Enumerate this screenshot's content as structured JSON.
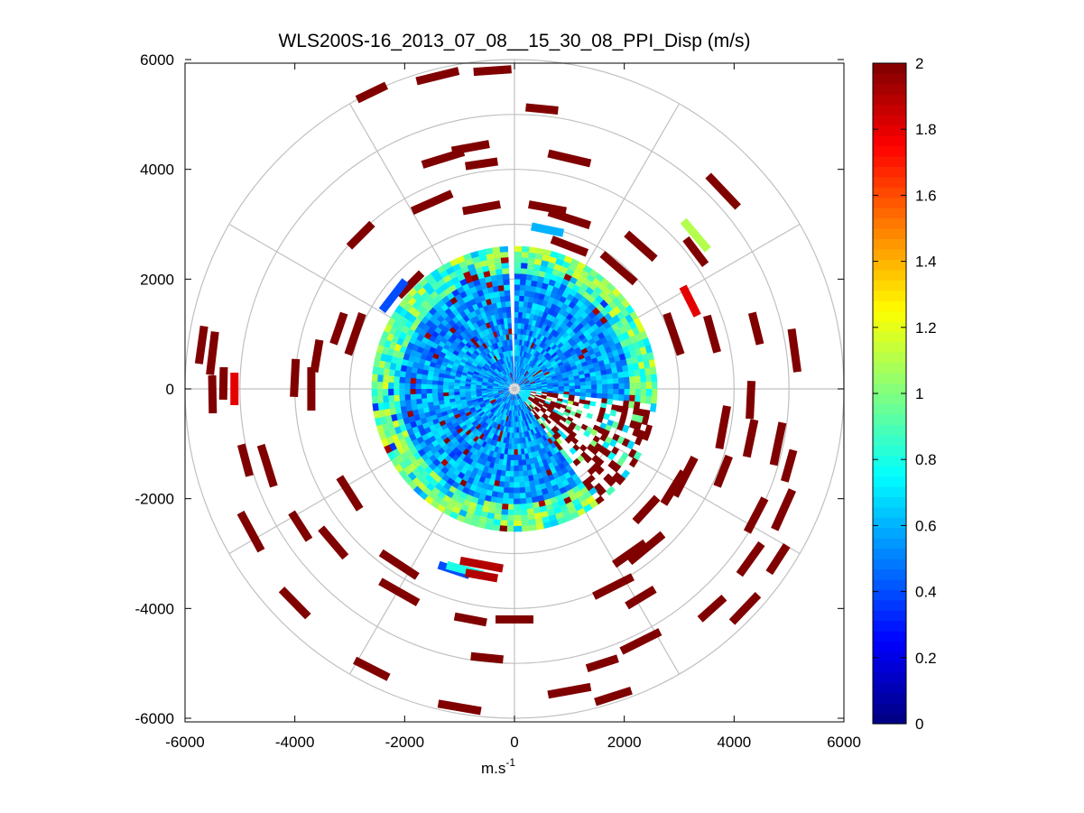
{
  "chart_data": {
    "type": "heatmap",
    "subtype": "polar-ppi-scan",
    "title": "WLS200S-16_2013_07_08__15_30_08_PPI_Disp (m/s)",
    "xlabel_base": "m.s",
    "xlabel_sup": "-1",
    "ylabel": "",
    "xlim": [
      -6000,
      6000
    ],
    "ylim": [
      -6000,
      6000
    ],
    "xticks": [
      "-6000",
      "-4000",
      "-2000",
      "0",
      "2000",
      "4000",
      "6000"
    ],
    "xtick_values": [
      -6000,
      -4000,
      -2000,
      0,
      2000,
      4000,
      6000
    ],
    "yticks": [
      "6000",
      "4000",
      "2000",
      "0",
      "-2000",
      "-4000",
      "-6000"
    ],
    "ytick_values": [
      6000,
      4000,
      2000,
      0,
      -2000,
      -4000,
      -6000
    ],
    "polar_grid": {
      "ring_radii": [
        1000,
        2000,
        3000,
        4000,
        5000,
        6000
      ],
      "spoke_angles_deg": [
        0,
        30,
        60,
        90,
        120,
        150,
        180,
        210,
        240,
        270,
        300,
        330
      ],
      "color": "#c0c0c0"
    },
    "dense_region": {
      "max_range": 2600,
      "gap_bearing_deg": [
        -3,
        1
      ],
      "high_dispersion_bearing_deg": [
        95,
        145
      ],
      "typical_value": 0.7
    },
    "sparse_cells": [
      {
        "x": -1900,
        "y": 1900,
        "v": 2.0
      },
      {
        "x": -2200,
        "y": 1700,
        "v": 0.4
      },
      {
        "x": -2900,
        "y": 1000,
        "v": 2.0
      },
      {
        "x": -3200,
        "y": 1100,
        "v": 2.0
      },
      {
        "x": -5700,
        "y": 800,
        "v": 2.0
      },
      {
        "x": -5500,
        "y": 650,
        "v": 2.0
      },
      {
        "x": -5100,
        "y": 0,
        "v": 1.8
      },
      {
        "x": -5500,
        "y": -100,
        "v": 2.0
      },
      {
        "x": -4500,
        "y": -1400,
        "v": 2.0
      },
      {
        "x": -4900,
        "y": -1300,
        "v": 2.0
      },
      {
        "x": -3000,
        "y": -1900,
        "v": 2.0
      },
      {
        "x": -4800,
        "y": -2600,
        "v": 2.0
      },
      {
        "x": -3900,
        "y": -2500,
        "v": 2.0
      },
      {
        "x": -3300,
        "y": -2800,
        "v": 2.0
      },
      {
        "x": -2100,
        "y": -3200,
        "v": 2.0
      },
      {
        "x": -1100,
        "y": -3300,
        "v": 0.4
      },
      {
        "x": -900,
        "y": -3300,
        "v": 0.8
      },
      {
        "x": -600,
        "y": -3200,
        "v": 1.9
      },
      {
        "x": -600,
        "y": -3400,
        "v": 1.9
      },
      {
        "x": -4000,
        "y": -3900,
        "v": 2.0
      },
      {
        "x": -2100,
        "y": -3700,
        "v": 2.0
      },
      {
        "x": -800,
        "y": -4200,
        "v": 2.0
      },
      {
        "x": -2600,
        "y": -5100,
        "v": 2.0
      },
      {
        "x": -1000,
        "y": -5800,
        "v": 2.0
      },
      {
        "x": -500,
        "y": -4900,
        "v": 2.0
      },
      {
        "x": 0,
        "y": -4200,
        "v": 2.0
      },
      {
        "x": 1000,
        "y": -5500,
        "v": 2.0
      },
      {
        "x": 1600,
        "y": -5000,
        "v": 2.0
      },
      {
        "x": 1800,
        "y": -5600,
        "v": 2.0
      },
      {
        "x": 2300,
        "y": -4600,
        "v": 2.0
      },
      {
        "x": 3600,
        "y": -4000,
        "v": 2.0
      },
      {
        "x": 4200,
        "y": -4000,
        "v": 2.0
      },
      {
        "x": 1800,
        "y": -3600,
        "v": 2.0
      },
      {
        "x": 2300,
        "y": -3800,
        "v": 2.0
      },
      {
        "x": 2100,
        "y": -3000,
        "v": 2.0
      },
      {
        "x": 2400,
        "y": -2900,
        "v": 2.0
      },
      {
        "x": 2400,
        "y": -2200,
        "v": 2.0
      },
      {
        "x": 2900,
        "y": -1800,
        "v": 2.0
      },
      {
        "x": 3100,
        "y": -1600,
        "v": 2.0
      },
      {
        "x": 3800,
        "y": -1500,
        "v": 2.0
      },
      {
        "x": 4300,
        "y": -900,
        "v": 2.0
      },
      {
        "x": 4800,
        "y": -1000,
        "v": 2.0
      },
      {
        "x": 5000,
        "y": -1400,
        "v": 2.0
      },
      {
        "x": 4400,
        "y": -2300,
        "v": 2.0
      },
      {
        "x": 4900,
        "y": -2200,
        "v": 2.0
      },
      {
        "x": 4800,
        "y": -3100,
        "v": 2.0
      },
      {
        "x": 4300,
        "y": -3100,
        "v": 2.0
      },
      {
        "x": 5100,
        "y": 700,
        "v": 2.0
      },
      {
        "x": 4400,
        "y": 1100,
        "v": 2.0
      },
      {
        "x": 3600,
        "y": 1000,
        "v": 2.0
      },
      {
        "x": 2900,
        "y": 1000,
        "v": 2.0
      },
      {
        "x": 3200,
        "y": 1600,
        "v": 1.8
      },
      {
        "x": 3300,
        "y": 2800,
        "v": 1.1
      },
      {
        "x": 3800,
        "y": 3600,
        "v": 2.0
      },
      {
        "x": 3300,
        "y": 2500,
        "v": 2.0
      },
      {
        "x": 2300,
        "y": 2600,
        "v": 2.0
      },
      {
        "x": 1000,
        "y": 4200,
        "v": 2.0
      },
      {
        "x": 500,
        "y": 5100,
        "v": 2.0
      },
      {
        "x": -400,
        "y": 5800,
        "v": 2.0
      },
      {
        "x": -1400,
        "y": 5700,
        "v": 2.0
      },
      {
        "x": -2600,
        "y": 5400,
        "v": 2.0
      },
      {
        "x": -800,
        "y": 4400,
        "v": 2.0
      },
      {
        "x": -1300,
        "y": 4200,
        "v": 2.0
      },
      {
        "x": -600,
        "y": 4100,
        "v": 2.0
      },
      {
        "x": -600,
        "y": 3300,
        "v": 2.0
      },
      {
        "x": -1500,
        "y": 3400,
        "v": 2.0
      },
      {
        "x": -2800,
        "y": 2800,
        "v": 2.0
      },
      {
        "x": 600,
        "y": 3300,
        "v": 2.0
      },
      {
        "x": 1000,
        "y": 3100,
        "v": 2.0
      },
      {
        "x": 600,
        "y": 2900,
        "v": 0.6
      },
      {
        "x": 1000,
        "y": 2600,
        "v": 2.0
      },
      {
        "x": 1900,
        "y": 2200,
        "v": 2.0
      },
      {
        "x": -3600,
        "y": 600,
        "v": 2.0
      },
      {
        "x": -4000,
        "y": 200,
        "v": 2.0
      },
      {
        "x": -3700,
        "y": 0,
        "v": 2.0
      },
      {
        "x": -5300,
        "y": 100,
        "v": 2.0
      },
      {
        "x": 4300,
        "y": -200,
        "v": 2.0
      },
      {
        "x": 3800,
        "y": -700,
        "v": 2.0
      }
    ],
    "colorbar": {
      "min": 0,
      "max": 2,
      "colormap": "jet",
      "tick_values": [
        0,
        0.2,
        0.4,
        0.6,
        0.8,
        1,
        1.2,
        1.4,
        1.6,
        1.8,
        2
      ],
      "tick_labels": [
        "0",
        "0.2",
        "0.4",
        "0.6",
        "0.8",
        "1",
        "1.2",
        "1.4",
        "1.6",
        "1.8",
        "2"
      ]
    }
  }
}
